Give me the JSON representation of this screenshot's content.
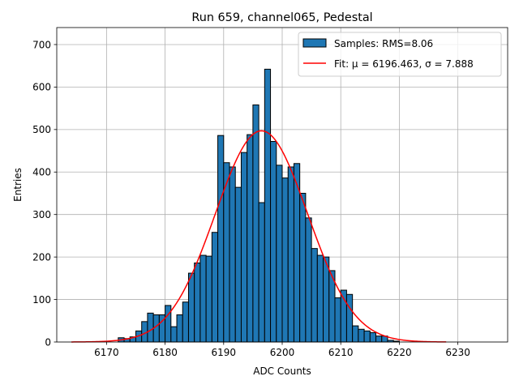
{
  "chart_data": {
    "type": "bar",
    "title": "Run 659, channel065, Pedestal",
    "xlabel": "ADC Counts",
    "ylabel": "Entries",
    "xlim": [
      6161.5,
      6238.5
    ],
    "ylim": [
      0,
      740
    ],
    "grid": true,
    "bin_width": 1,
    "legend": {
      "position": "top-right",
      "entries": [
        {
          "label": "Samples: RMS=8.06",
          "kind": "patch",
          "color": "#1f77b4"
        },
        {
          "label": "Fit: μ = 6196.463, σ = 7.888",
          "kind": "line",
          "color": "#ff0000"
        }
      ]
    },
    "x_ticks": [
      6170,
      6180,
      6190,
      6200,
      6210,
      6220,
      6230
    ],
    "x_tick_labels": [
      "6170",
      "6180",
      "6190",
      "6200",
      "6210",
      "6220",
      "6230"
    ],
    "y_ticks": [
      0,
      100,
      200,
      300,
      400,
      500,
      600,
      700
    ],
    "y_tick_labels": [
      "0",
      "100",
      "200",
      "300",
      "400",
      "500",
      "600",
      "700"
    ],
    "series": [
      {
        "name": "Samples: RMS=8.06",
        "bin_starts": [
          6172,
          6173,
          6174,
          6175,
          6176,
          6177,
          6178,
          6179,
          6180,
          6181,
          6182,
          6183,
          6184,
          6185,
          6186,
          6187,
          6188,
          6189,
          6190,
          6191,
          6192,
          6193,
          6194,
          6195,
          6196,
          6197,
          6198,
          6199,
          6200,
          6201,
          6202,
          6203,
          6204,
          6205,
          6206,
          6207,
          6208,
          6209,
          6210,
          6211,
          6212,
          6213,
          6214,
          6215,
          6216,
          6217,
          6218,
          6219
        ],
        "values": [
          10,
          8,
          12,
          26,
          48,
          68,
          64,
          64,
          86,
          36,
          64,
          94,
          162,
          186,
          204,
          202,
          258,
          486,
          422,
          412,
          364,
          446,
          488,
          558,
          328,
          642,
          472,
          416,
          386,
          412,
          420,
          350,
          292,
          220,
          204,
          200,
          168,
          104,
          122,
          112,
          38,
          30,
          26,
          22,
          14,
          14,
          4,
          2
        ]
      },
      {
        "name": "Fit: μ = 6196.463, σ = 7.888",
        "type": "gaussian",
        "mu": 6196.463,
        "sigma": 7.888,
        "amplitude": 497,
        "x_range": [
          6164,
          6228
        ]
      }
    ]
  }
}
